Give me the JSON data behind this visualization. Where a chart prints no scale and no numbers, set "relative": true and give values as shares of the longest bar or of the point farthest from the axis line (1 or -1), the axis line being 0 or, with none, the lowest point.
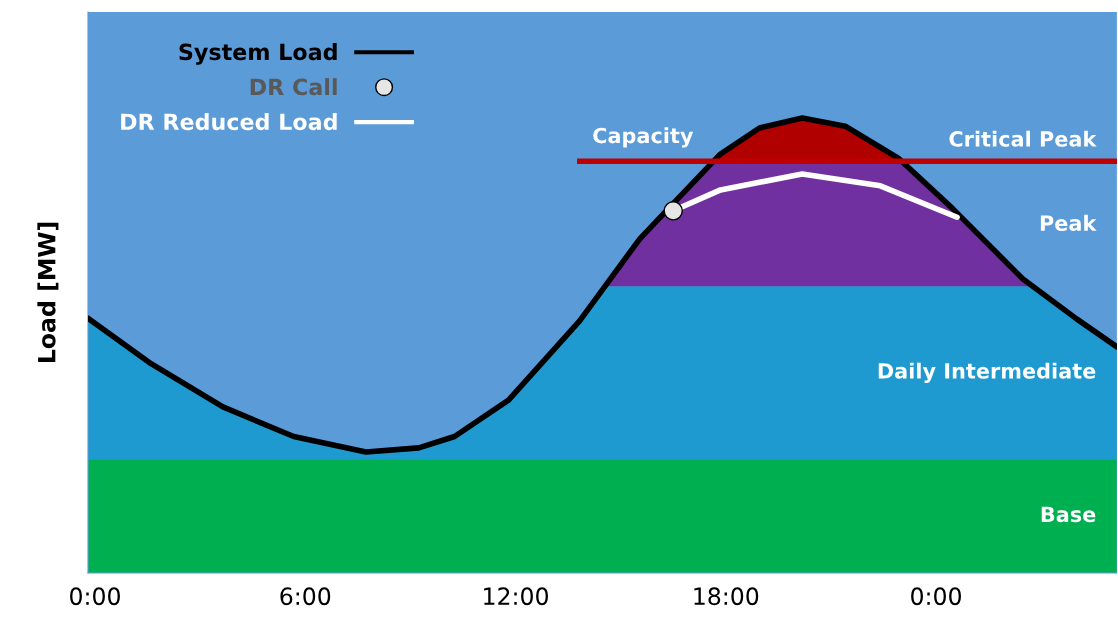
{
  "chart_data": {
    "type": "line",
    "ylabel": "Load [MW]",
    "relative": true,
    "x": [
      -0.2,
      1.6,
      3.65,
      5.67,
      7.73,
      9.24,
      10.26,
      11.8,
      13.83,
      15.54,
      16.3,
      17.85,
      18.96,
      20.18,
      21.41,
      22.92,
      24.46,
      26.48,
      28.02,
      29.16
    ],
    "xlim": [
      -0.2,
      29.16
    ],
    "xticks": [
      {
        "value": 0,
        "label": "0:00"
      },
      {
        "value": 6,
        "label": "6:00"
      },
      {
        "value": 12,
        "label": "12:00"
      },
      {
        "value": 18,
        "label": "18:00"
      },
      {
        "value": 24,
        "label": "0:00"
      }
    ],
    "series": [
      {
        "name": "System Load",
        "color": "#000000",
        "values": [
          0.56,
          0.46,
          0.365,
          0.3,
          0.266,
          0.275,
          0.3,
          0.38,
          0.554,
          0.734,
          0.796,
          0.921,
          0.978,
          1.0,
          0.982,
          0.912,
          0.802,
          0.646,
          0.558,
          0.497
        ]
      },
      {
        "name": "DR Call",
        "type": "scatter",
        "color": "#e6e6e6",
        "x": [
          16.5
        ],
        "values": [
          0.796
        ]
      },
      {
        "name": "DR Reduced Load",
        "color": "#ffffff",
        "x": [
          16.5,
          17.85,
          20.18,
          22.41,
          24.6
        ],
        "values": [
          0.796,
          0.842,
          0.877,
          0.851,
          0.782
        ]
      }
    ],
    "ref_lines": [
      {
        "axis": "y",
        "value": 0.905,
        "label": "Capacity",
        "color": "#c00000"
      }
    ],
    "bands": [
      {
        "axis": "y",
        "from": 0,
        "to": 0.25,
        "label": "Base",
        "color": "#00b050"
      },
      {
        "axis": "y",
        "from": 0.25,
        "to": 0.63,
        "label": "Daily Intermediate",
        "color": "#1f9ad0"
      },
      {
        "axis": "y",
        "from": 0.63,
        "to": 0.9,
        "label": "Peak",
        "color": "#7030a0"
      },
      {
        "axis": "y",
        "from": 0.9,
        "to": 1.0,
        "label": "Critical Peak",
        "color": "#b00000"
      }
    ],
    "legend": "top left",
    "grid": false
  }
}
